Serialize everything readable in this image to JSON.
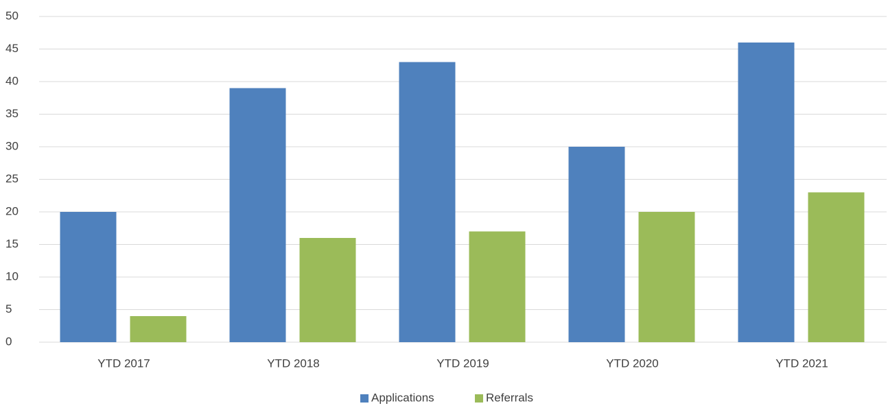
{
  "chart_data": {
    "type": "bar",
    "categories": [
      "YTD 2017",
      "YTD 2018",
      "YTD 2019",
      "YTD 2020",
      "YTD 2021"
    ],
    "series": [
      {
        "name": "Applications",
        "color": "#4f81bd",
        "values": [
          20,
          39,
          43,
          30,
          46
        ]
      },
      {
        "name": "Referrals",
        "color": "#9bbb59",
        "values": [
          4,
          16,
          17,
          20,
          23
        ]
      }
    ],
    "ylim": [
      0,
      50
    ],
    "yticks": [
      0,
      5,
      10,
      15,
      20,
      25,
      30,
      35,
      40,
      45,
      50
    ],
    "grid": true,
    "legend": "bottom"
  }
}
